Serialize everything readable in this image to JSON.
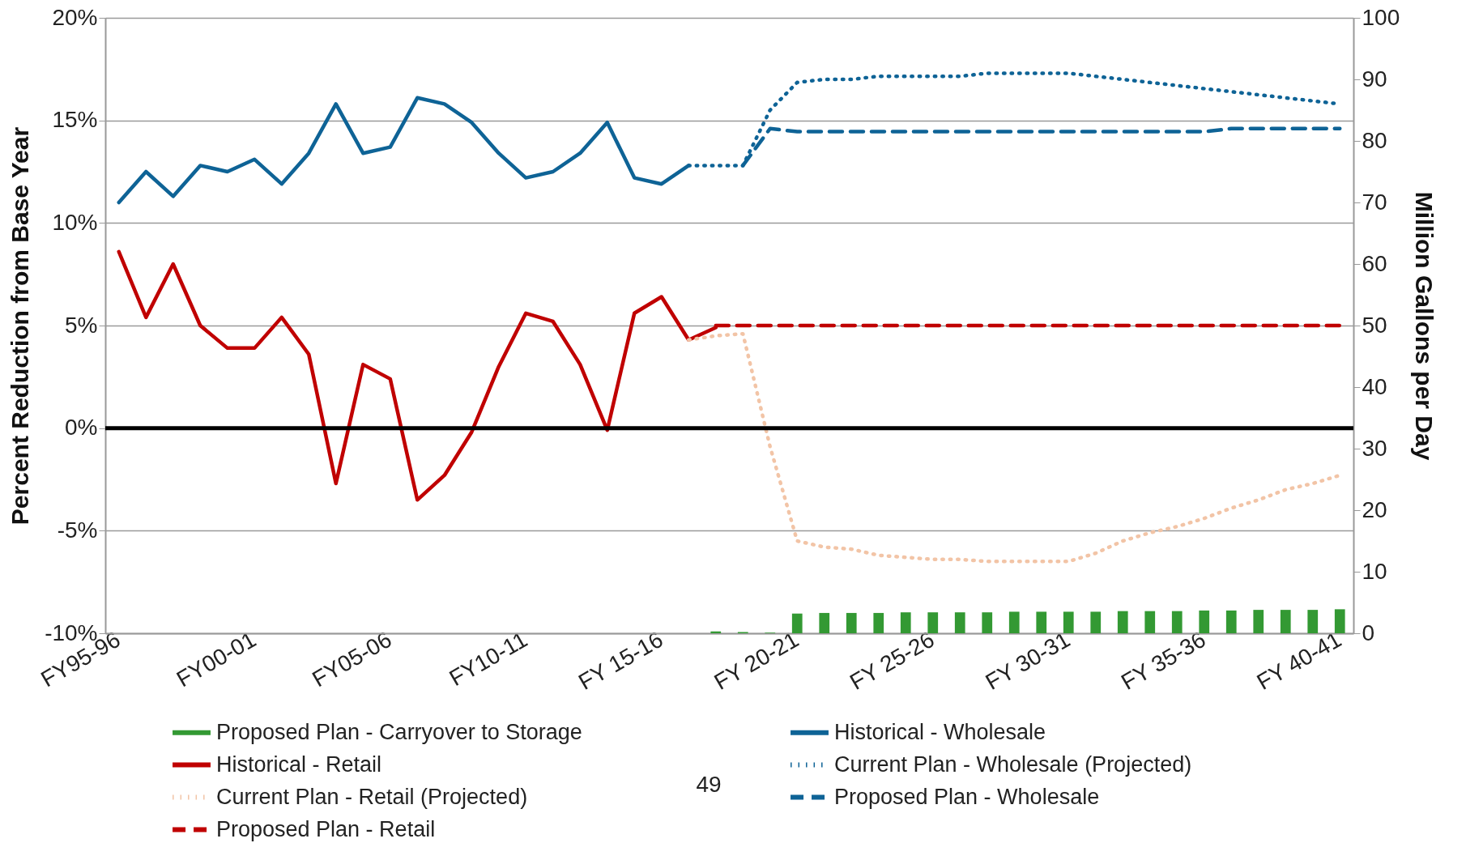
{
  "chart_data": {
    "type": "line",
    "ylabel": "Percent Reduction from Base Year",
    "y2label": "Million Gallons per Day",
    "categories": [
      "FY95-96",
      null,
      null,
      null,
      null,
      "FY00-01",
      null,
      null,
      null,
      null,
      "FY05-06",
      null,
      null,
      null,
      null,
      "FY10-11",
      null,
      null,
      null,
      null,
      "FY 15-16",
      null,
      null,
      null,
      null,
      "FY 20-21",
      null,
      null,
      null,
      null,
      "FY 25-26",
      null,
      null,
      null,
      null,
      "FY 30-31",
      null,
      null,
      null,
      null,
      "FY 35-36",
      null,
      null,
      null,
      null,
      "FY 40-41"
    ],
    "ylim": [
      -10,
      20
    ],
    "yticks": [
      {
        "value": -10,
        "label": "-10%"
      },
      {
        "value": -5,
        "label": "-5%"
      },
      {
        "value": 0,
        "label": "0%"
      },
      {
        "value": 5,
        "label": "5%"
      },
      {
        "value": 10,
        "label": "10%"
      },
      {
        "value": 15,
        "label": "15%"
      },
      {
        "value": 20,
        "label": "20%"
      }
    ],
    "y2lim": [
      0,
      100
    ],
    "y2ticks": [
      0,
      10,
      20,
      30,
      40,
      50,
      60,
      70,
      80,
      90,
      100
    ],
    "grid": "y",
    "legend": "bottom",
    "marker": "none",
    "ref_lines": [
      {
        "axis": "y",
        "value": 0,
        "color": "#000000",
        "line_style": "solid"
      }
    ],
    "annotations": [
      "49"
    ],
    "series": [
      {
        "name": "Proposed Plan - Carryover to Storage",
        "type": "bar",
        "axis": "y2",
        "color": "#339933",
        "values": [
          null,
          null,
          null,
          null,
          null,
          null,
          null,
          null,
          null,
          null,
          null,
          null,
          null,
          null,
          null,
          null,
          null,
          null,
          null,
          null,
          null,
          null,
          0.3,
          0.2,
          0.1,
          3.2,
          3.3,
          3.3,
          3.3,
          3.4,
          3.4,
          3.4,
          3.4,
          3.5,
          3.5,
          3.5,
          3.5,
          3.6,
          3.6,
          3.6,
          3.7,
          3.7,
          3.8,
          3.8,
          3.8,
          3.9
        ]
      },
      {
        "name": "Historical - Retail",
        "axis": "y",
        "line_style": "solid",
        "color": "#c00000",
        "values": [
          8.6,
          5.4,
          8.0,
          5.0,
          3.9,
          3.9,
          5.4,
          3.6,
          -2.7,
          3.1,
          2.4,
          -3.5,
          -2.3,
          -0.2,
          3.0,
          5.6,
          5.2,
          3.1,
          -0.1,
          5.6,
          6.4,
          4.3,
          4.9,
          null,
          null,
          null,
          null,
          null,
          null,
          null,
          null,
          null,
          null,
          null,
          null,
          null,
          null,
          null,
          null,
          null,
          null,
          null,
          null,
          null,
          null,
          null
        ]
      },
      {
        "name": "Current Plan - Retail (Projected)",
        "axis": "y",
        "line_style": "dotted",
        "color": "#f2c4a6",
        "values": [
          null,
          null,
          null,
          null,
          null,
          null,
          null,
          null,
          null,
          null,
          null,
          null,
          null,
          null,
          null,
          null,
          null,
          null,
          null,
          null,
          null,
          4.3,
          4.5,
          4.6,
          -0.9,
          -5.5,
          -5.8,
          -5.9,
          -6.2,
          -6.3,
          -6.4,
          -6.4,
          -6.5,
          -6.5,
          -6.5,
          -6.5,
          -6.1,
          -5.5,
          -5.1,
          -4.8,
          -4.4,
          -3.9,
          -3.5,
          -3.0,
          -2.7,
          -2.3
        ]
      },
      {
        "name": "Proposed Plan - Retail",
        "axis": "y",
        "line_style": "dashed",
        "color": "#c00000",
        "values": [
          null,
          null,
          null,
          null,
          null,
          null,
          null,
          null,
          null,
          null,
          null,
          null,
          null,
          null,
          null,
          null,
          null,
          null,
          null,
          null,
          null,
          null,
          5,
          5,
          5,
          5,
          5,
          5,
          5,
          5,
          5,
          5,
          5,
          5,
          5,
          5,
          5,
          5,
          5,
          5,
          5,
          5,
          5,
          5,
          5,
          5
        ]
      },
      {
        "name": "Historical - Wholesale",
        "axis": "y2",
        "line_style": "solid",
        "color": "#0e6396",
        "values": [
          70,
          75,
          71,
          76,
          75,
          77,
          73,
          78,
          86,
          78,
          79,
          87,
          86,
          83,
          78,
          74,
          75,
          78,
          83,
          74,
          73,
          76,
          null,
          null,
          null,
          null,
          null,
          null,
          null,
          null,
          null,
          null,
          null,
          null,
          null,
          null,
          null,
          null,
          null,
          null,
          null,
          null,
          null,
          null,
          null,
          null
        ]
      },
      {
        "name": "Current Plan - Wholesale (Projected)",
        "axis": "y2",
        "line_style": "dotted",
        "color": "#0e6396",
        "values": [
          null,
          null,
          null,
          null,
          null,
          null,
          null,
          null,
          null,
          null,
          null,
          null,
          null,
          null,
          null,
          null,
          null,
          null,
          null,
          null,
          null,
          76,
          76,
          76,
          85,
          89.5,
          90,
          90,
          90.5,
          90.5,
          90.5,
          90.5,
          91,
          91,
          91,
          91,
          90.5,
          90,
          89.5,
          89,
          88.5,
          88,
          87.5,
          87,
          86.5,
          86
        ]
      },
      {
        "name": "Proposed Plan - Wholesale",
        "axis": "y2",
        "line_style": "dashed",
        "color": "#0e6396",
        "values": [
          null,
          null,
          null,
          null,
          null,
          null,
          null,
          null,
          null,
          null,
          null,
          null,
          null,
          null,
          null,
          null,
          null,
          null,
          null,
          null,
          null,
          null,
          null,
          76,
          82,
          81.5,
          81.5,
          81.5,
          81.5,
          81.5,
          81.5,
          81.5,
          81.5,
          81.5,
          81.5,
          81.5,
          81.5,
          81.5,
          81.5,
          81.5,
          81.5,
          82,
          82,
          82,
          82,
          82
        ]
      }
    ]
  }
}
